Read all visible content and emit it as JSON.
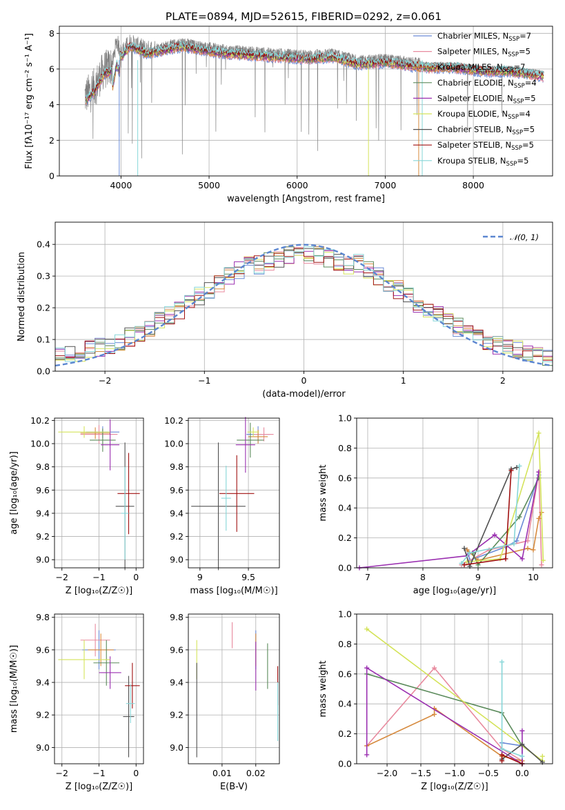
{
  "figure": {
    "title": "PLATE=0894, MJD=52615, FIBERID=0292, z=0.061"
  },
  "colors": {
    "data": "#808080",
    "series": [
      "#6a8ad6",
      "#e88a9e",
      "#d68a3e",
      "#5a8a5a",
      "#9a2fb0",
      "#d4e35a",
      "#505050",
      "#a01010",
      "#86d6d8"
    ]
  },
  "legend_entries": [
    {
      "name": "Chabrier MILES",
      "nssp": 7
    },
    {
      "name": "Salpeter MILES",
      "nssp": 5
    },
    {
      "name": "Kroupa MILES",
      "nssp": 7
    },
    {
      "name": "Chabrier ELODIE",
      "nssp": 4
    },
    {
      "name": "Salpeter ELODIE",
      "nssp": 5
    },
    {
      "name": "Kroupa ELODIE",
      "nssp": 4
    },
    {
      "name": "Chabrier STELIB",
      "nssp": 5
    },
    {
      "name": "Salpeter STELIB",
      "nssp": 5
    },
    {
      "name": "Kroupa STELIB",
      "nssp": 5
    }
  ],
  "chart_data": [
    {
      "id": "spectrum",
      "type": "line",
      "xlabel": "wavelength [Angstrom, rest frame]",
      "ylabel": "Flux [fλ10⁻¹⁷ erg cm⁻² s⁻¹ A⁻¹]",
      "xlim": [
        3300,
        8900
      ],
      "ylim": [
        0,
        8.4
      ],
      "xticks": [
        4000,
        5000,
        6000,
        7000,
        8000
      ],
      "yticks": [
        0,
        2,
        4,
        6,
        8
      ],
      "continuum": {
        "x": [
          3600,
          3700,
          3800,
          3900,
          3950,
          4000,
          4100,
          4300,
          4500,
          4700,
          4900,
          5200,
          5500,
          5800,
          6100,
          6400,
          6700,
          7000,
          7300,
          7500,
          7800,
          8100,
          8400,
          8700,
          8800
        ],
        "y": [
          4.5,
          5.0,
          5.9,
          6.2,
          7.6,
          6.9,
          7.5,
          7.1,
          7.3,
          7.5,
          7.3,
          7.1,
          7.0,
          6.9,
          6.8,
          6.9,
          6.5,
          6.6,
          6.4,
          6.3,
          6.3,
          6.1,
          6.1,
          5.9,
          5.8
        ]
      },
      "legend_position": "right"
    },
    {
      "id": "residuals",
      "type": "histogram",
      "xlabel": "(data-model)/error",
      "ylabel": "Normed distribution",
      "xlim": [
        -2.5,
        2.5
      ],
      "ylim": [
        0,
        0.47
      ],
      "xticks": [
        -2,
        -1,
        0,
        1,
        2
      ],
      "yticks": [
        0.0,
        0.1,
        0.2,
        0.3,
        0.4
      ],
      "bin_width": 0.1,
      "reference_label": "𝒩(0, 1)",
      "legend_position": "top-right"
    },
    {
      "id": "age-vs-Z",
      "type": "scatter",
      "xlabel": "Z [log₁₀(Z/Z☉)]",
      "ylabel": "age  [log₁₀(age/yr)]",
      "xlim": [
        -2.2,
        0.2
      ],
      "ylim": [
        8.93,
        10.22
      ],
      "xticks": [
        -2,
        -1,
        0
      ],
      "yticks": [
        9.0,
        9.2,
        9.4,
        9.6,
        9.8,
        10.0,
        10.2
      ],
      "points": [
        {
          "s": 0,
          "x": -0.9,
          "y": 10.1,
          "xe": 0.45,
          "ye": 0.05
        },
        {
          "s": 1,
          "x": -1.0,
          "y": 10.08,
          "xe": 0.5,
          "ye": 0.08
        },
        {
          "s": 2,
          "x": -1.1,
          "y": 10.09,
          "xe": 0.4,
          "ye": 0.05
        },
        {
          "s": 3,
          "x": -0.9,
          "y": 10.03,
          "xe": 0.35,
          "ye": 0.1
        },
        {
          "s": 4,
          "x": -0.7,
          "y": 9.99,
          "xe": 0.25,
          "ye": 0.22
        },
        {
          "s": 5,
          "x": -1.4,
          "y": 10.1,
          "xe": 0.7,
          "ye": 0.05
        },
        {
          "s": 6,
          "x": -0.3,
          "y": 9.46,
          "xe": 0.25,
          "ye": 0.55
        },
        {
          "s": 7,
          "x": -0.2,
          "y": 9.57,
          "xe": 0.3,
          "ye": 0.35
        },
        {
          "s": 8,
          "x": -0.3,
          "y": 9.4,
          "xe": 0.1,
          "ye": 0.4
        }
      ]
    },
    {
      "id": "age-vs-mass",
      "type": "scatter",
      "xlabel": "mass [log₁₀(M/M☉)]",
      "ylabel": "",
      "xlim": [
        8.88,
        9.82
      ],
      "ylim": [
        8.93,
        10.22
      ],
      "xticks": [
        9.0,
        9.5
      ],
      "yticks": [
        9.0,
        9.2,
        9.4,
        9.6,
        9.8,
        10.0,
        10.2
      ],
      "points": [
        {
          "s": 0,
          "x": 9.6,
          "y": 10.08,
          "xe": 0.12,
          "ye": 0.07
        },
        {
          "s": 1,
          "x": 9.66,
          "y": 10.08,
          "xe": 0.1,
          "ye": 0.06
        },
        {
          "s": 2,
          "x": 9.6,
          "y": 10.06,
          "xe": 0.1,
          "ye": 0.06
        },
        {
          "s": 3,
          "x": 9.52,
          "y": 10.03,
          "xe": 0.14,
          "ye": 0.15
        },
        {
          "s": 4,
          "x": 9.47,
          "y": 9.99,
          "xe": 0.1,
          "ye": 0.24
        },
        {
          "s": 5,
          "x": 9.55,
          "y": 10.1,
          "xe": 0.06,
          "ye": 0.04
        },
        {
          "s": 6,
          "x": 9.19,
          "y": 9.46,
          "xe": 0.28,
          "ye": 0.55
        },
        {
          "s": 7,
          "x": 9.38,
          "y": 9.57,
          "xe": 0.18,
          "ye": 0.33
        },
        {
          "s": 8,
          "x": 9.27,
          "y": 9.53,
          "xe": 0.05,
          "ye": 0.28
        }
      ]
    },
    {
      "id": "weight-vs-age",
      "type": "line",
      "xlabel": "age  [log₁₀(age/yr)]",
      "ylabel": "mass weight",
      "xlim": [
        6.8,
        10.35
      ],
      "ylim": [
        0,
        1.0
      ],
      "xticks": [
        7,
        8,
        9,
        10
      ],
      "yticks": [
        0.0,
        0.2,
        0.4,
        0.6,
        0.8,
        1.0
      ],
      "series": [
        {
          "s": 0,
          "x": [
            8.8,
            8.85,
            9.5,
            9.7,
            10.1
          ],
          "y": [
            0.12,
            0.05,
            0.14,
            0.18,
            0.62
          ]
        },
        {
          "s": 1,
          "x": [
            8.7,
            9.2,
            9.9,
            10.1,
            10.15
          ],
          "y": [
            0.02,
            0.12,
            0.18,
            0.64,
            0.02
          ]
        },
        {
          "s": 2,
          "x": [
            8.8,
            9.0,
            9.9,
            10.0,
            10.1,
            10.15
          ],
          "y": [
            0.12,
            0.05,
            0.13,
            0.12,
            0.33,
            0.37
          ]
        },
        {
          "s": 3,
          "x": [
            8.9,
            9.0,
            9.75,
            10.1
          ],
          "y": [
            0.1,
            0.02,
            0.34,
            0.6
          ]
        },
        {
          "s": 4,
          "x": [
            6.85,
            8.8,
            9.3,
            9.8,
            10.1
          ],
          "y": [
            0.0,
            0.08,
            0.22,
            0.06,
            0.64
          ]
        },
        {
          "s": 5,
          "x": [
            8.8,
            9.4,
            10.1,
            10.18
          ],
          "y": [
            0.04,
            0.06,
            0.9,
            0.05
          ]
        },
        {
          "s": 6,
          "x": [
            8.75,
            8.85,
            9.6,
            9.7
          ],
          "y": [
            0.13,
            0.01,
            0.66,
            0.67
          ]
        },
        {
          "s": 7,
          "x": [
            8.75,
            9.5,
            9.6
          ],
          "y": [
            0.02,
            0.06,
            0.65
          ]
        },
        {
          "s": 8,
          "x": [
            8.7,
            8.85,
            9.65,
            9.75
          ],
          "y": [
            0.03,
            0.1,
            0.16,
            0.68
          ]
        }
      ]
    },
    {
      "id": "mass-vs-Z",
      "type": "scatter",
      "xlabel": "Z [log₁₀(Z/Z☉)]",
      "ylabel": "mass [log₁₀(M/M☉)]",
      "xlim": [
        -2.2,
        0.2
      ],
      "ylim": [
        8.9,
        9.82
      ],
      "xticks": [
        -2,
        -1,
        0
      ],
      "yticks": [
        9.0,
        9.2,
        9.4,
        9.6,
        9.8
      ],
      "points": [
        {
          "s": 0,
          "x": -1.0,
          "y": 9.6,
          "xe": 0.45,
          "ye": 0.12
        },
        {
          "s": 1,
          "x": -1.1,
          "y": 9.66,
          "xe": 0.4,
          "ye": 0.1
        },
        {
          "s": 2,
          "x": -0.95,
          "y": 9.6,
          "xe": 0.35,
          "ye": 0.1
        },
        {
          "s": 3,
          "x": -0.8,
          "y": 9.52,
          "xe": 0.35,
          "ye": 0.14
        },
        {
          "s": 4,
          "x": -0.7,
          "y": 9.46,
          "xe": 0.3,
          "ye": 0.1
        },
        {
          "s": 5,
          "x": -1.4,
          "y": 9.54,
          "xe": 0.7,
          "ye": 0.12
        },
        {
          "s": 6,
          "x": -0.2,
          "y": 9.19,
          "xe": 0.15,
          "ye": 0.25
        },
        {
          "s": 7,
          "x": -0.1,
          "y": 9.38,
          "xe": 0.2,
          "ye": 0.14
        },
        {
          "s": 8,
          "x": -0.15,
          "y": 9.27,
          "xe": 0.12,
          "ye": 0.12
        }
      ]
    },
    {
      "id": "mass-vs-EBV",
      "type": "scatter",
      "xlabel": "E(B-V)",
      "ylabel": "",
      "xlim": [
        0.0,
        0.027
      ],
      "ylim": [
        8.9,
        9.82
      ],
      "xticks": [
        0.01,
        0.02
      ],
      "xticklabels": [
        "0.01",
        "0.02"
      ],
      "yticks": [
        9.0,
        9.2,
        9.4,
        9.6,
        9.8
      ],
      "points": [
        {
          "s": 0,
          "x": 0.02,
          "y": 9.6,
          "xe": 0,
          "ye": 0.12
        },
        {
          "s": 1,
          "x": 0.013,
          "y": 9.69,
          "xe": 0,
          "ye": 0.08
        },
        {
          "s": 2,
          "x": 0.02,
          "y": 9.6,
          "xe": 0,
          "ye": 0.1
        },
        {
          "s": 3,
          "x": 0.0235,
          "y": 9.5,
          "xe": 0,
          "ye": 0.14
        },
        {
          "s": 4,
          "x": 0.02,
          "y": 9.5,
          "xe": 0,
          "ye": 0.15
        },
        {
          "s": 5,
          "x": 0.0025,
          "y": 9.54,
          "xe": 0,
          "ye": 0.12
        },
        {
          "s": 6,
          "x": 0.0025,
          "y": 9.23,
          "xe": 0,
          "ye": 0.29
        },
        {
          "s": 7,
          "x": 0.0265,
          "y": 9.38,
          "xe": 0,
          "ye": 0.12
        },
        {
          "s": 8,
          "x": 0.0265,
          "y": 9.22,
          "xe": 0,
          "ye": 0.18
        }
      ]
    },
    {
      "id": "weight-vs-Z",
      "type": "line",
      "xlabel": "Z [log₁₀(Z/Z☉)]",
      "ylabel": "mass weight",
      "xlim": [
        -2.45,
        0.45
      ],
      "ylim": [
        0,
        1.0
      ],
      "xticks": [
        -2.0,
        -1.5,
        -1.0,
        -0.5,
        0.0
      ],
      "xticklabels": [
        "−2.0",
        "−1.5",
        "−1.0",
        "−0.5",
        "0.0"
      ],
      "yticks": [
        0.0,
        0.2,
        0.4,
        0.6,
        0.8,
        1.0
      ],
      "series": [
        {
          "s": 0,
          "x": [
            -0.3,
            -0.3,
            0.0,
            0.0
          ],
          "y": [
            0.05,
            0.14,
            0.12,
            0.02
          ]
        },
        {
          "s": 1,
          "x": [
            -2.3,
            -1.3,
            -0.3,
            0.0
          ],
          "y": [
            0.12,
            0.64,
            0.1,
            0.02
          ]
        },
        {
          "s": 2,
          "x": [
            -2.3,
            -1.3,
            -1.3,
            -0.3,
            0.0
          ],
          "y": [
            0.12,
            0.33,
            0.37,
            0.05,
            0.02
          ]
        },
        {
          "s": 3,
          "x": [
            -2.3,
            -0.3,
            0.0,
            0.3
          ],
          "y": [
            0.6,
            0.34,
            0.12,
            0.02
          ]
        },
        {
          "s": 4,
          "x": [
            -2.3,
            -2.3,
            0.0,
            0.0
          ],
          "y": [
            0.06,
            0.64,
            0.0,
            0.22
          ]
        },
        {
          "s": 5,
          "x": [
            -2.3,
            0.3,
            0.3
          ],
          "y": [
            0.9,
            0.02,
            0.05
          ]
        },
        {
          "s": 6,
          "x": [
            -0.3,
            0.0,
            0.3
          ],
          "y": [
            0.03,
            0.13,
            0.01
          ]
        },
        {
          "s": 7,
          "x": [
            -0.3,
            -0.3,
            0.0
          ],
          "y": [
            0.02,
            0.06,
            0.0
          ]
        },
        {
          "s": 8,
          "x": [
            -0.3,
            -0.3,
            0.0
          ],
          "y": [
            0.68,
            0.1,
            0.05
          ]
        }
      ]
    }
  ]
}
